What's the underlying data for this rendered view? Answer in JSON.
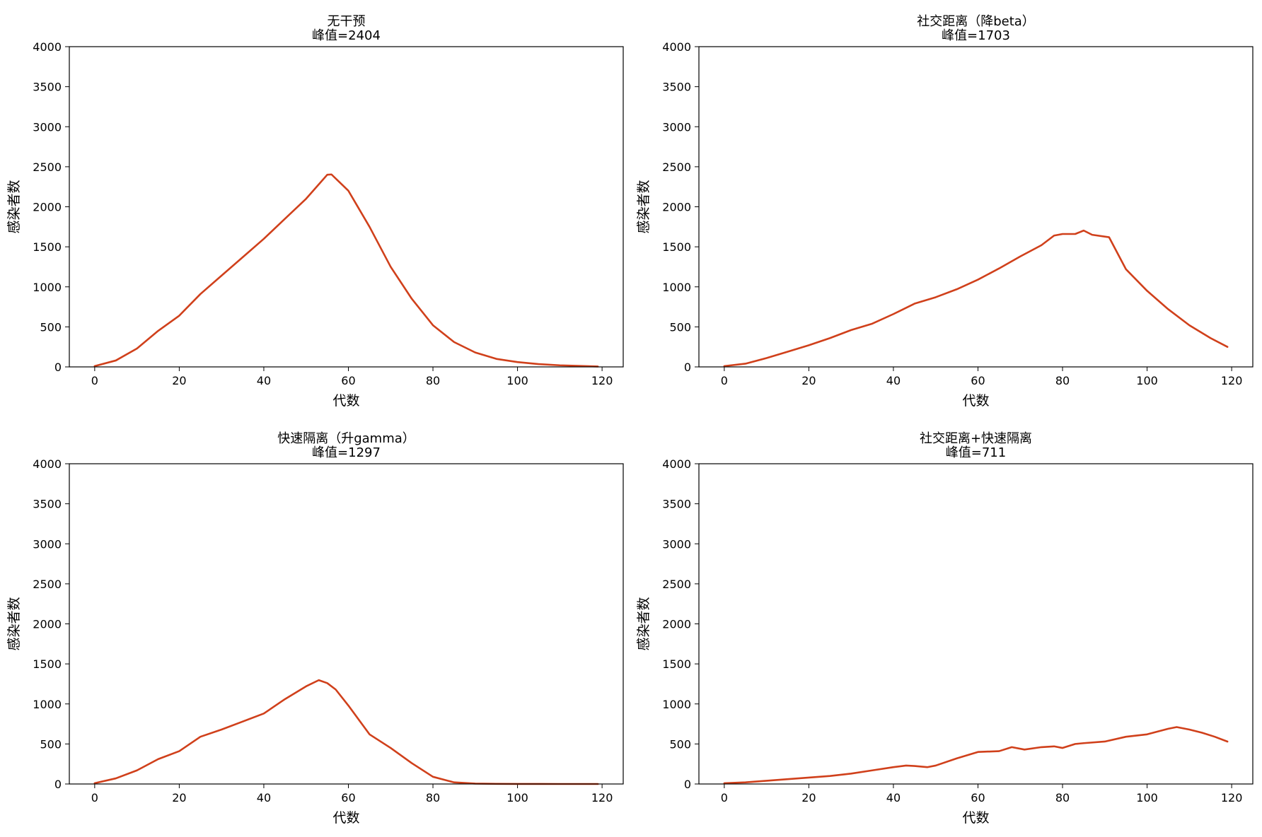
{
  "chart_data": [
    {
      "type": "line",
      "title": "无干预",
      "subtitle": "峰值=2404",
      "xlabel": "代数",
      "ylabel": "感染者数",
      "xlim": [
        -6,
        125
      ],
      "ylim": [
        0,
        4000
      ],
      "xticks": [
        0,
        20,
        40,
        60,
        80,
        100,
        120
      ],
      "yticks": [
        0,
        500,
        1000,
        1500,
        2000,
        2500,
        3000,
        3500,
        4000
      ],
      "grid": false,
      "series": [
        {
          "color": "#d0401b",
          "x": [
            0,
            5,
            10,
            15,
            20,
            25,
            30,
            35,
            40,
            45,
            50,
            55,
            56,
            60,
            65,
            70,
            75,
            80,
            85,
            90,
            95,
            100,
            105,
            110,
            115,
            119
          ],
          "y": [
            10,
            80,
            230,
            450,
            640,
            910,
            1140,
            1370,
            1600,
            1850,
            2100,
            2400,
            2404,
            2200,
            1750,
            1250,
            850,
            520,
            310,
            180,
            100,
            60,
            35,
            20,
            12,
            5
          ]
        }
      ]
    },
    {
      "type": "line",
      "title": "社交距离（降beta）",
      "subtitle": "峰值=1703",
      "xlabel": "代数",
      "ylabel": "感染者数",
      "xlim": [
        -6,
        125
      ],
      "ylim": [
        0,
        4000
      ],
      "xticks": [
        0,
        20,
        40,
        60,
        80,
        100,
        120
      ],
      "yticks": [
        0,
        500,
        1000,
        1500,
        2000,
        2500,
        3000,
        3500,
        4000
      ],
      "grid": false,
      "series": [
        {
          "color": "#d0401b",
          "x": [
            0,
            5,
            10,
            15,
            20,
            25,
            30,
            35,
            40,
            45,
            50,
            55,
            60,
            65,
            70,
            75,
            78,
            80,
            83,
            85,
            87,
            91,
            95,
            100,
            105,
            110,
            115,
            119
          ],
          "y": [
            10,
            40,
            110,
            190,
            270,
            360,
            460,
            540,
            660,
            790,
            870,
            970,
            1090,
            1230,
            1380,
            1520,
            1640,
            1660,
            1660,
            1703,
            1650,
            1620,
            1220,
            950,
            720,
            520,
            360,
            250
          ]
        }
      ]
    },
    {
      "type": "line",
      "title": "快速隔离（升gamma）",
      "subtitle": "峰值=1297",
      "xlabel": "代数",
      "ylabel": "感染者数",
      "xlim": [
        -6,
        125
      ],
      "ylim": [
        0,
        4000
      ],
      "xticks": [
        0,
        20,
        40,
        60,
        80,
        100,
        120
      ],
      "yticks": [
        0,
        500,
        1000,
        1500,
        2000,
        2500,
        3000,
        3500,
        4000
      ],
      "grid": false,
      "series": [
        {
          "color": "#d0401b",
          "x": [
            0,
            5,
            10,
            15,
            20,
            25,
            30,
            35,
            40,
            45,
            50,
            53,
            55,
            57,
            60,
            65,
            70,
            75,
            80,
            85,
            90,
            95,
            100,
            110,
            119
          ],
          "y": [
            10,
            70,
            170,
            310,
            410,
            590,
            680,
            780,
            880,
            1060,
            1220,
            1297,
            1260,
            1180,
            980,
            620,
            450,
            260,
            90,
            20,
            5,
            2,
            1,
            0,
            0
          ]
        }
      ]
    },
    {
      "type": "line",
      "title": "社交距离+快速隔离",
      "subtitle": "峰值=711",
      "xlabel": "代数",
      "ylabel": "感染者数",
      "xlim": [
        -6,
        125
      ],
      "ylim": [
        0,
        4000
      ],
      "xticks": [
        0,
        20,
        40,
        60,
        80,
        100,
        120
      ],
      "yticks": [
        0,
        500,
        1000,
        1500,
        2000,
        2500,
        3000,
        3500,
        4000
      ],
      "grid": false,
      "series": [
        {
          "color": "#d0401b",
          "x": [
            0,
            5,
            10,
            15,
            20,
            25,
            30,
            35,
            40,
            43,
            45,
            48,
            50,
            55,
            60,
            65,
            68,
            71,
            75,
            78,
            80,
            83,
            85,
            90,
            95,
            100,
            105,
            107,
            110,
            113,
            116,
            119
          ],
          "y": [
            10,
            20,
            40,
            60,
            80,
            100,
            130,
            170,
            210,
            230,
            225,
            210,
            230,
            320,
            400,
            410,
            460,
            430,
            460,
            470,
            450,
            500,
            510,
            530,
            590,
            620,
            690,
            711,
            680,
            640,
            590,
            530
          ]
        }
      ]
    }
  ]
}
